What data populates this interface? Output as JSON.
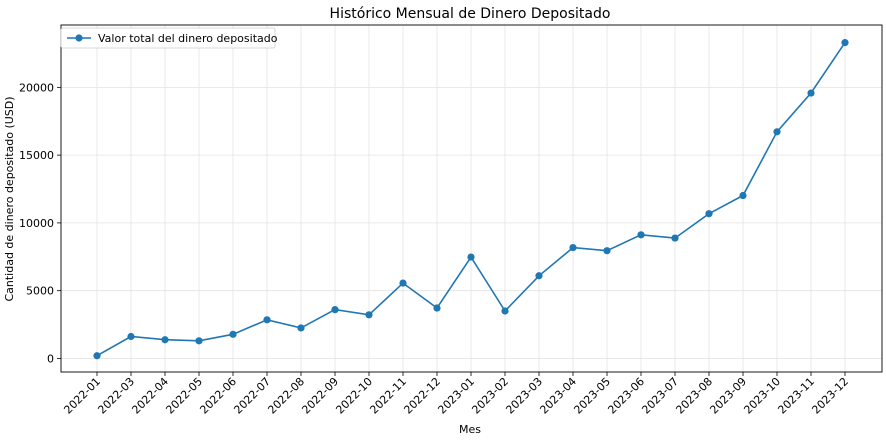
{
  "chart_data": {
    "type": "line",
    "title": "Histórico Mensual de Dinero Depositado",
    "xlabel": "Mes",
    "ylabel": "Cantidad de dinero depositado (USD)",
    "categories": [
      "2022-01",
      "2022-03",
      "2022-04",
      "2022-05",
      "2022-06",
      "2022-07",
      "2022-08",
      "2022-09",
      "2022-10",
      "2022-11",
      "2022-12",
      "2023-01",
      "2023-02",
      "2023-03",
      "2023-04",
      "2023-05",
      "2023-06",
      "2023-07",
      "2023-08",
      "2023-09",
      "2023-10",
      "2023-11",
      "2023-12"
    ],
    "series": [
      {
        "name": "Valor total del dinero depositado",
        "color": "#1f77b4",
        "marker": "circle",
        "values": [
          200,
          1620,
          1380,
          1300,
          1780,
          2850,
          2250,
          3600,
          3220,
          5560,
          3720,
          7480,
          3500,
          6100,
          8180,
          7950,
          9120,
          8880,
          10680,
          12020,
          16720,
          19580,
          23300
        ]
      }
    ],
    "yticks": [
      0,
      5000,
      10000,
      15000,
      20000
    ],
    "ylim": [
      -1000,
      24600
    ],
    "grid": true,
    "legend_position": "top-left"
  }
}
